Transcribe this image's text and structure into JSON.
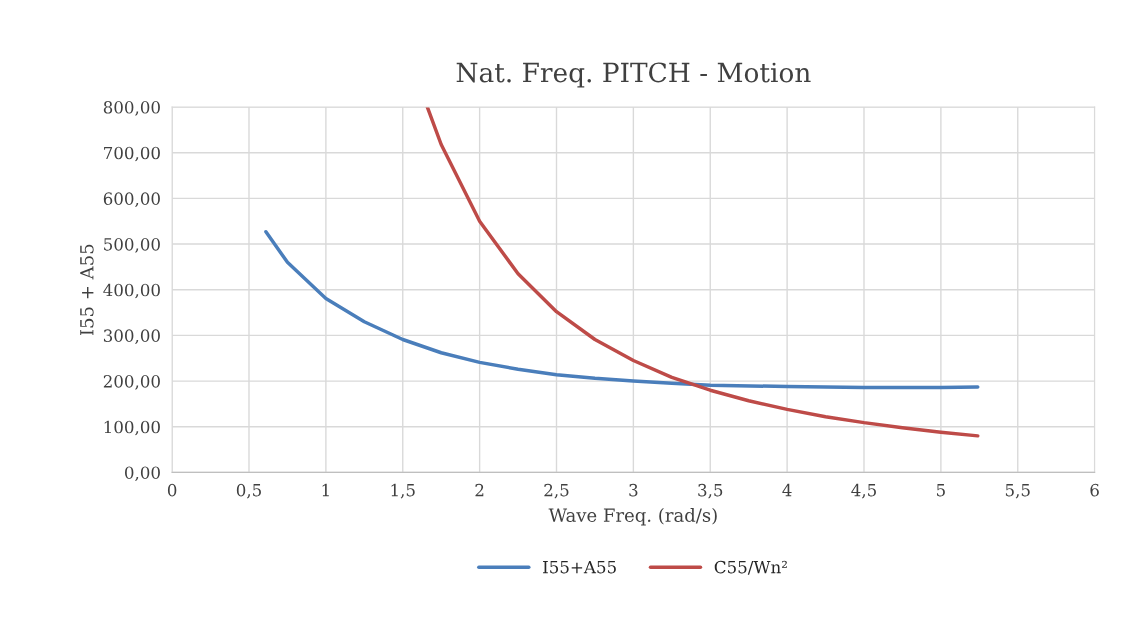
{
  "chart_data": {
    "type": "line",
    "title": "Nat. Freq. PITCH - Motion",
    "xlabel": "Wave Freq. (rad/s)",
    "ylabel": "I55 + A55",
    "series": [
      {
        "name": "I55+A55",
        "color": "#4a7ebb",
        "x": [
          0.61,
          0.75,
          1,
          1.25,
          1.5,
          1.75,
          2,
          2.25,
          2.5,
          2.75,
          3,
          3.25,
          3.5,
          4,
          4.5,
          5,
          5.24
        ],
        "values": [
          527,
          460,
          381,
          330,
          291,
          262,
          241,
          226,
          214,
          206,
          200,
          195,
          191,
          188,
          186,
          186,
          187
        ]
      },
      {
        "name": "C55/Wn²",
        "color": "#be4b48",
        "x": [
          1.66,
          1.75,
          2,
          2.25,
          2.5,
          2.75,
          3,
          3.25,
          3.5,
          3.75,
          4,
          4.25,
          4.5,
          4.75,
          5,
          5.24
        ],
        "values": [
          800,
          718,
          550,
          435,
          352,
          291,
          245,
          208,
          180,
          157,
          138,
          122,
          109,
          98,
          88,
          80
        ]
      }
    ],
    "xlim": [
      0,
      6
    ],
    "ylim": [
      0,
      800
    ],
    "xticks": [
      0,
      {
        "value": 0.5,
        "label": "0,5"
      },
      1,
      {
        "value": 1.5,
        "label": "1,5"
      },
      2,
      {
        "value": 2.5,
        "label": "2,5"
      },
      3,
      {
        "value": 3.5,
        "label": "3,5"
      },
      4,
      {
        "value": 4.5,
        "label": "4,5"
      },
      5,
      {
        "value": 5.5,
        "label": "5,5"
      },
      6
    ],
    "yticks": [
      {
        "value": 0,
        "label": "0,00"
      },
      {
        "value": 100,
        "label": "100,00"
      },
      {
        "value": 200,
        "label": "200,00"
      },
      {
        "value": 300,
        "label": "300,00"
      },
      {
        "value": 400,
        "label": "400,00"
      },
      {
        "value": 500,
        "label": "500,00"
      },
      {
        "value": 600,
        "label": "600,00"
      },
      {
        "value": 700,
        "label": "700,00"
      },
      {
        "value": 800,
        "label": "800,00"
      }
    ],
    "grid": true,
    "legend": "bottom",
    "line_style": "solid",
    "marker": "none"
  }
}
